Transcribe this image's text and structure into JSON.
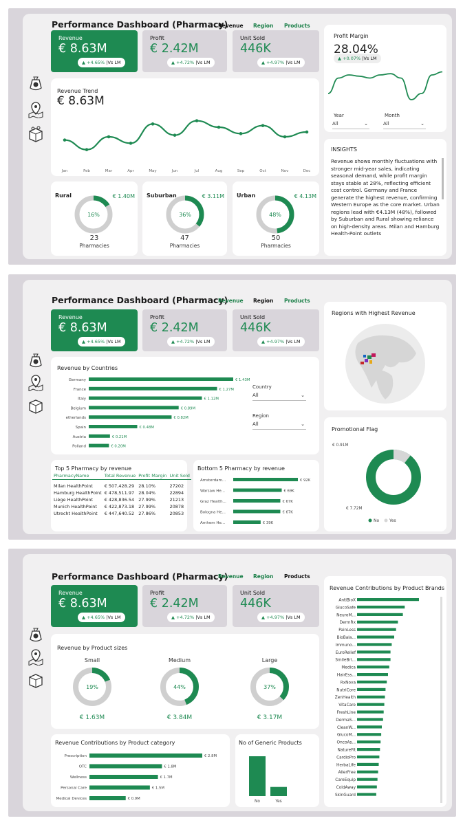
{
  "title": "Performance Dashboard (Pharmacy)",
  "nav": [
    "Revenue",
    "Region",
    "Products"
  ],
  "kpis": {
    "revenue": {
      "label": "Revenue",
      "value": "€ 8.63M",
      "change": "▲ +4.65%",
      "vs": "|Vs LM"
    },
    "profit": {
      "label": "Profit",
      "value": "€ 2.42M",
      "change": "▲ +4.72%",
      "vs": "|Vs LM"
    },
    "units": {
      "label": "Unit Sold",
      "value": "446K",
      "change": "▲ +4.97%",
      "vs": "|Vs LM"
    }
  },
  "page1": {
    "trend_title": "Revenue Trend",
    "trend_value": "€ 8.63M",
    "margin_title": "Profit Margin",
    "margin_value": "28.04%",
    "margin_change": "▲ +0.07%",
    "margin_vs": "|Vs LM",
    "filters": {
      "year_label": "Year",
      "year_value": "All",
      "month_label": "Month",
      "month_value": "All"
    },
    "segments": [
      {
        "name": "Rural",
        "value": "€ 1.40M",
        "pct": "16%",
        "pct_num": 16,
        "count": "23",
        "unit": "Pharmacies"
      },
      {
        "name": "Suburban",
        "value": "€ 3.11M",
        "pct": "36%",
        "pct_num": 36,
        "count": "47",
        "unit": "Pharmacies"
      },
      {
        "name": "Urban",
        "value": "€ 4.13M",
        "pct": "48%",
        "pct_num": 48,
        "count": "50",
        "unit": "Pharmacies"
      }
    ],
    "insights_title": "INSIGHTS",
    "insights_text": "Revenue shows monthly fluctuations with stronger mid-year sales, indicating seasonal demand, while profit margin stays stable at 28%, reflecting efficient cost control. Germany and France generate the highest revenue, confirming Western Europe as the core market. Urban regions lead with €4.13M (48%), followed by Suburban and Rural showing reliance on high-density areas. Milan and Hamburg Health-Point outlets"
  },
  "page2": {
    "map_title": "Regions with Highest Revenue",
    "countries_title": "Revenue by Countries",
    "country_filter": {
      "label": "Country",
      "value": "All"
    },
    "region_filter": {
      "label": "Region",
      "value": "All"
    },
    "promo_title": "Promotional Flag",
    "promo_legend": [
      "No",
      "Yes"
    ],
    "top5_title": "Top 5 Pharmacy by revenue",
    "top5_headers": [
      "PharmacyName",
      "Total Revenue",
      "Profit Margin",
      "Unit Sold"
    ],
    "top5_rows": [
      [
        "Milan HealthPoint",
        "€ 507,428.29",
        "28.10%",
        "27202"
      ],
      [
        "Hamburg HealthPoint",
        "€ 478,511.97",
        "28.04%",
        "22894"
      ],
      [
        "Liège HealthPoint",
        "€ 428,836.54",
        "27.99%",
        "21213"
      ],
      [
        "Munich HealthPoint",
        "€ 422,873.18",
        "27.99%",
        "20878"
      ],
      [
        "Utrecht HealthPoint",
        "€ 447,640.52",
        "27.86%",
        "20853"
      ]
    ],
    "bottom5_title": "Bottom 5 Pharmacy by revenue"
  },
  "page3": {
    "sizes_title": "Revenue by Product sizes",
    "sizes": [
      {
        "name": "Small",
        "pct": "19%",
        "pct_num": 19,
        "value": "€ 1.63M"
      },
      {
        "name": "Medium",
        "pct": "44%",
        "pct_num": 44,
        "value": "€ 3.84M"
      },
      {
        "name": "Large",
        "pct": "37%",
        "pct_num": 37,
        "value": "€ 3.17M"
      }
    ],
    "category_title": "Revenue Contributions by Product category",
    "generic_title": "No of Generic Products",
    "brands_title": "Revenue Contributions by Product Brands"
  },
  "chart_data": [
    {
      "type": "line",
      "title": "Revenue Trend",
      "categories": [
        "Jan",
        "Feb",
        "Mar",
        "Apr",
        "May",
        "Jun",
        "Jul",
        "Aug",
        "Sep",
        "Oct",
        "Nov",
        "Dec"
      ],
      "values": [
        0.68,
        0.62,
        0.7,
        0.66,
        0.78,
        0.71,
        0.8,
        0.76,
        0.72,
        0.77,
        0.7,
        0.73
      ]
    },
    {
      "type": "line",
      "title": "Profit Margin",
      "values": [
        27.8,
        28.05,
        28.1,
        28.08,
        28.05,
        28.1,
        28.12,
        28.05,
        27.7,
        27.8,
        28.1,
        28.15
      ]
    },
    {
      "type": "bar",
      "title": "Revenue by Countries",
      "categories": [
        "Germany",
        "France",
        "Italy",
        "Belgium",
        "etherlands",
        "Spain",
        "Austria",
        "Polland"
      ],
      "values": [
        1.43,
        1.27,
        1.12,
        0.89,
        0.82,
        0.48,
        0.21,
        0.2
      ],
      "labels": [
        "€ 1.43M",
        "€ 1.27M",
        "€ 1.12M",
        "€ 0.89M",
        "€ 0.82M",
        "€ 0.48M",
        "€ 0.21M",
        "€ 0.20M"
      ]
    },
    {
      "type": "bar",
      "title": "Bottom 5 Pharmacy by revenue",
      "categories": [
        "Amsterdam...",
        "Warsaw He...",
        "Graz Health...",
        "Bologna He...",
        "Arnhem He..."
      ],
      "values": [
        92,
        69,
        67,
        67,
        39
      ],
      "labels": [
        "€ 92K",
        "€ 69K",
        "€ 67K",
        "€ 67K",
        "€ 39K"
      ]
    },
    {
      "type": "pie",
      "title": "Promotional Flag",
      "categories": [
        "No",
        "Yes"
      ],
      "values": [
        7.72,
        0.91
      ],
      "labels": [
        "€ 7.72M",
        "€ 0.91M"
      ]
    },
    {
      "type": "bar",
      "title": "Revenue Contributions by Product category",
      "categories": [
        "Prescription",
        "OTC",
        "Wellness",
        "Personal Care",
        "Medical Devices"
      ],
      "values": [
        2.8,
        1.8,
        1.7,
        1.5,
        0.9
      ],
      "labels": [
        "€ 2.8M",
        "€ 1.8M",
        "€ 1.7M",
        "€ 1.5M",
        "€ 0.9M"
      ]
    },
    {
      "type": "bar",
      "title": "No of Generic Products",
      "categories": [
        "No",
        "Yes"
      ],
      "values": [
        100,
        23
      ]
    },
    {
      "type": "bar",
      "title": "Revenue Contributions by Product Brands",
      "categories": [
        "AntiBioX",
        "GlucoSafe",
        "NeuroM...",
        "DermRx",
        "PainLess",
        "BioBala...",
        "Immuno...",
        "EuroRelief",
        "SmileBri...",
        "Medica",
        "HairEss...",
        "RxNova",
        "NutriCore",
        "ZenHealth",
        "VitaCare",
        "FreshLine",
        "DermaS...",
        "CleanW...",
        "GlucoM...",
        "OncoAs...",
        "NatureFit",
        "CardioPro",
        "HerbaLife",
        "AllerFree",
        "CareEquip",
        "ColdAway",
        "SkinGuard"
      ],
      "values": [
        100,
        77,
        74,
        66,
        63,
        60,
        56,
        54,
        54,
        52,
        50,
        48,
        46,
        45,
        44,
        43,
        42,
        40,
        39,
        38,
        37,
        36,
        35,
        34,
        33,
        32,
        31
      ]
    }
  ]
}
